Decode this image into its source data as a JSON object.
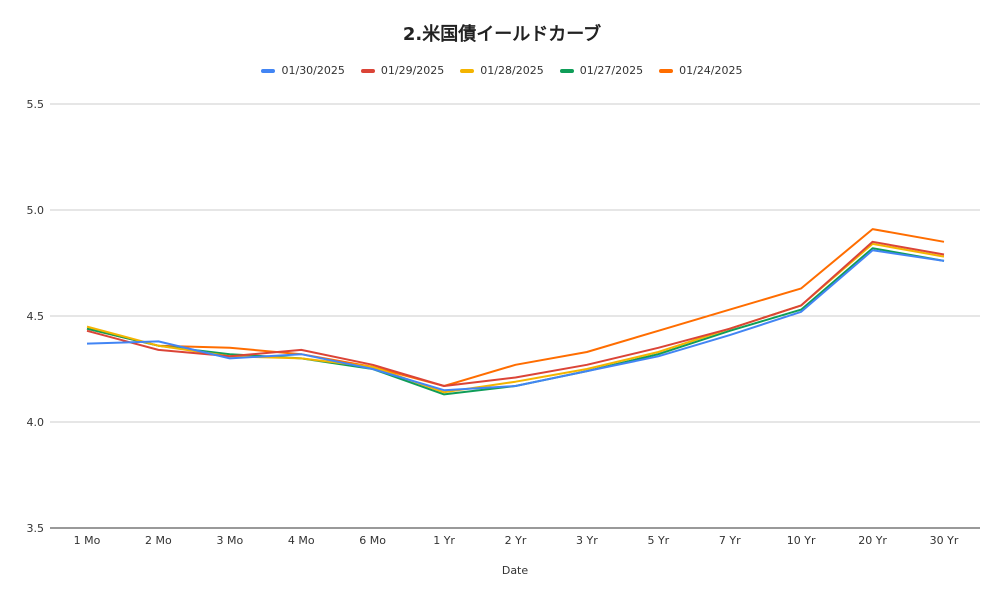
{
  "chart_data": {
    "type": "line",
    "title": "2.米国債イールドカーブ",
    "xlabel": "Date",
    "ylabel": "",
    "ylim": [
      3.5,
      5.5
    ],
    "yticks": [
      "3.5",
      "4.0",
      "4.5",
      "5.0",
      "5.5"
    ],
    "grid": true,
    "legend_position": "top",
    "categories": [
      "1 Mo",
      "2 Mo",
      "3 Mo",
      "4 Mo",
      "6 Mo",
      "1 Yr",
      "2 Yr",
      "3 Yr",
      "5 Yr",
      "7 Yr",
      "10 Yr",
      "20 Yr",
      "30 Yr"
    ],
    "series": [
      {
        "name": "01/30/2025",
        "color": "#4285f4",
        "values": [
          4.37,
          4.38,
          4.3,
          4.32,
          4.25,
          4.15,
          4.17,
          4.24,
          4.31,
          4.41,
          4.52,
          4.81,
          4.76
        ]
      },
      {
        "name": "01/29/2025",
        "color": "#db4437",
        "values": [
          4.43,
          4.34,
          4.31,
          4.34,
          4.27,
          4.17,
          4.21,
          4.27,
          4.35,
          4.44,
          4.55,
          4.85,
          4.79
        ]
      },
      {
        "name": "01/28/2025",
        "color": "#f4b400",
        "values": [
          4.45,
          4.36,
          4.31,
          4.3,
          4.26,
          4.14,
          4.19,
          4.25,
          4.33,
          4.44,
          4.55,
          4.84,
          4.78
        ]
      },
      {
        "name": "01/27/2025",
        "color": "#0f9d58",
        "values": [
          4.44,
          4.36,
          4.32,
          4.3,
          4.25,
          4.13,
          4.17,
          4.24,
          4.32,
          4.43,
          4.53,
          4.82,
          4.76
        ]
      },
      {
        "name": "01/24/2025",
        "color": "#ff6d00",
        "values": [
          4.44,
          4.36,
          4.35,
          4.32,
          4.26,
          4.17,
          4.27,
          4.33,
          4.43,
          4.53,
          4.63,
          4.91,
          4.85
        ]
      }
    ]
  }
}
